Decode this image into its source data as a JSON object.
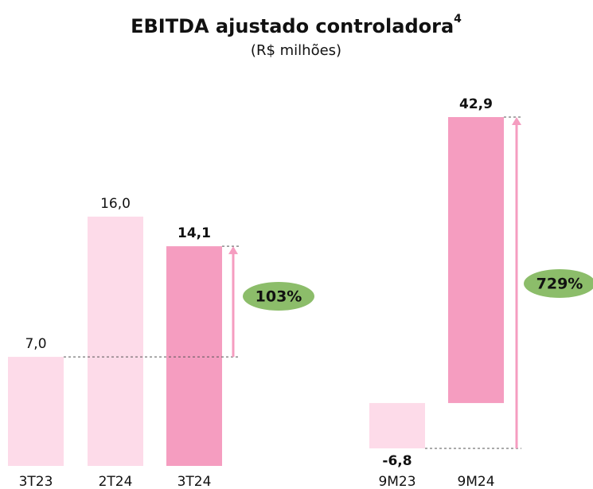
{
  "title": "EBITDA ajustado controladora",
  "title_note": "4",
  "subtitle": "(R$ milhões)",
  "chart_data": [
    {
      "type": "bar",
      "categories": [
        "3T23",
        "2T24",
        "3T24"
      ],
      "values": [
        7.0,
        16.0,
        14.1
      ],
      "value_labels": [
        "7,0",
        "16,0",
        "14,1"
      ],
      "colors": [
        "#fddbe9",
        "#fddbe9",
        "#f59dc0"
      ],
      "annotation": "103%",
      "annotation_color": "#8cbd6a",
      "arrow_color": "#f59dc0"
    },
    {
      "type": "bar",
      "categories": [
        "9M23",
        "9M24"
      ],
      "values": [
        -6.8,
        42.9
      ],
      "value_labels": [
        "-6,8",
        "42,9"
      ],
      "colors": [
        "#fddbe9",
        "#f59dc0"
      ],
      "annotation": "729%",
      "annotation_color": "#8cbd6a",
      "arrow_color": "#f59dc0"
    }
  ]
}
